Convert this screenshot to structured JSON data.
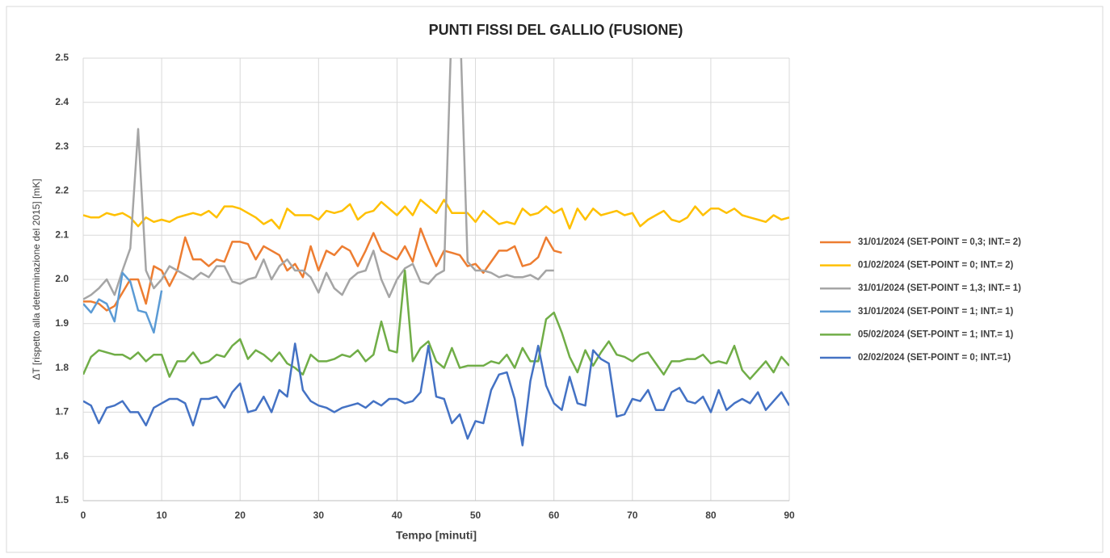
{
  "chart_data": {
    "type": "line",
    "title": "PUNTI FISSI DEL GALLIO (FUSIONE)",
    "x_label": "Tempo [minuti]",
    "y_label": "ΔT [rispetto alla determinazione del 2015] [mK]",
    "x": [
      0,
      1,
      2,
      3,
      4,
      5,
      6,
      7,
      8,
      9,
      10,
      11,
      12,
      13,
      14,
      15,
      16,
      17,
      18,
      19,
      20,
      21,
      22,
      23,
      24,
      25,
      26,
      27,
      28,
      29,
      30,
      31,
      32,
      33,
      34,
      35,
      36,
      37,
      38,
      39,
      40,
      41,
      42,
      43,
      44,
      45,
      46,
      47,
      48,
      49,
      50,
      51,
      52,
      53,
      54,
      55,
      56,
      57,
      58,
      59,
      60,
      61,
      62,
      63,
      64,
      65,
      66,
      67,
      68,
      69,
      70,
      71,
      72,
      73,
      74,
      75,
      76,
      77,
      78,
      79,
      80,
      81,
      82,
      83,
      84,
      85,
      86,
      87,
      88,
      89,
      90
    ],
    "xlim": [
      0,
      90
    ],
    "xticks": [
      0,
      10,
      20,
      30,
      40,
      50,
      60,
      70,
      80,
      90
    ],
    "ylim": [
      1.5,
      2.5
    ],
    "yticks": [
      1.5,
      1.6,
      1.7,
      1.8,
      1.9,
      {
        "value": 2,
        "label": "2.0"
      },
      2.1,
      2.2,
      2.3,
      2.4,
      2.5
    ],
    "grid": true,
    "legend": "right",
    "series": [
      {
        "name": "31/01/2024 (SET-POINT = 0,3; INT.= 2)",
        "color": "#ed7d31",
        "values": [
          1.95,
          1.95,
          1.945,
          1.93,
          1.94,
          1.97,
          2.0,
          2.0,
          1.945,
          2.03,
          2.02,
          1.985,
          2.02,
          2.095,
          2.045,
          2.045,
          2.03,
          2.045,
          2.04,
          2.085,
          2.085,
          2.08,
          2.045,
          2.075,
          2.065,
          2.055,
          2.02,
          2.035,
          2.005,
          2.075,
          2.02,
          2.065,
          2.055,
          2.075,
          2.065,
          2.03,
          2.065,
          2.105,
          2.065,
          2.055,
          2.045,
          2.075,
          2.04,
          2.115,
          2.07,
          2.03,
          2.065,
          2.06,
          2.055,
          2.03,
          2.035,
          2.015,
          2.04,
          2.065,
          2.065,
          2.075,
          2.03,
          2.035,
          2.05,
          2.095,
          2.065,
          2.06,
          null,
          null,
          null,
          null,
          null,
          null,
          null,
          null,
          null,
          null,
          null,
          null,
          null,
          null,
          null,
          null,
          null,
          null,
          null,
          null,
          null,
          null,
          null,
          null,
          null,
          null,
          null,
          null,
          null
        ]
      },
      {
        "name": "01/02/2024 (SET-POINT = 0; INT.= 2)",
        "color": "#ffc000",
        "values": [
          2.145,
          2.14,
          2.14,
          2.15,
          2.145,
          2.15,
          2.14,
          2.12,
          2.14,
          2.13,
          2.135,
          2.13,
          2.14,
          2.145,
          2.15,
          2.145,
          2.155,
          2.14,
          2.165,
          2.165,
          2.16,
          2.15,
          2.14,
          2.125,
          2.135,
          2.115,
          2.16,
          2.145,
          2.145,
          2.145,
          2.135,
          2.155,
          2.15,
          2.155,
          2.17,
          2.135,
          2.15,
          2.155,
          2.175,
          2.16,
          2.145,
          2.165,
          2.145,
          2.18,
          2.165,
          2.15,
          2.18,
          2.15,
          2.15,
          2.15,
          2.13,
          2.155,
          2.14,
          2.125,
          2.13,
          2.125,
          2.16,
          2.145,
          2.15,
          2.165,
          2.15,
          2.16,
          2.115,
          2.16,
          2.135,
          2.16,
          2.145,
          2.15,
          2.155,
          2.145,
          2.15,
          2.12,
          2.135,
          2.145,
          2.155,
          2.135,
          2.13,
          2.14,
          2.165,
          2.145,
          2.16,
          2.16,
          2.15,
          2.16,
          2.145,
          2.14,
          2.135,
          2.13,
          2.145,
          2.135,
          2.14
        ]
      },
      {
        "name": "31/01/2024 (SET-POINT = 1,3; INT.= 1)",
        "color": "#a5a5a5",
        "values": [
          1.955,
          1.965,
          1.98,
          2.0,
          1.965,
          2.02,
          2.07,
          2.34,
          2.02,
          1.98,
          2.0,
          2.03,
          2.02,
          2.01,
          2.0,
          2.015,
          2.005,
          2.03,
          2.03,
          1.995,
          1.99,
          2.0,
          2.005,
          2.045,
          2.0,
          2.03,
          2.045,
          2.02,
          2.02,
          2.005,
          1.97,
          2.015,
          1.98,
          1.965,
          2.0,
          2.015,
          2.02,
          2.065,
          2.0,
          1.96,
          2.0,
          2.025,
          2.035,
          1.995,
          1.99,
          2.01,
          2.02,
          2.6,
          2.6,
          2.04,
          2.02,
          2.02,
          2.015,
          2.005,
          2.01,
          2.005,
          2.005,
          2.01,
          2.0,
          2.02,
          2.02,
          null,
          null,
          null,
          null,
          null,
          null,
          null,
          null,
          null,
          null,
          null,
          null,
          null,
          null,
          null,
          null,
          null,
          null,
          null,
          null,
          null,
          null,
          null,
          null,
          null,
          null,
          null,
          null,
          null,
          null
        ]
      },
      {
        "name": "31/01/2024 (SET-POINT = 1; INT.= 1)",
        "color": "#5b9bd5",
        "values": [
          1.945,
          1.925,
          1.955,
          1.945,
          1.905,
          2.015,
          1.995,
          1.93,
          1.925,
          1.88,
          1.975,
          null,
          null,
          null,
          null,
          null,
          null,
          null,
          null,
          null,
          null,
          null,
          null,
          null,
          null,
          null,
          null,
          null,
          null,
          null,
          null,
          null,
          null,
          null,
          null,
          null,
          null,
          null,
          null,
          null,
          null,
          null,
          null,
          null,
          null,
          null,
          null,
          null,
          null,
          null,
          null,
          null,
          null,
          null,
          null,
          null,
          null,
          null,
          null,
          null,
          null,
          null,
          null,
          null,
          null,
          null,
          null,
          null,
          null,
          null,
          null,
          null,
          null,
          null,
          null,
          null,
          null,
          null,
          null,
          null,
          null,
          null,
          null,
          null,
          null,
          null,
          null,
          null,
          null,
          null,
          null
        ]
      },
      {
        "name": "05/02/2024 (SET-POINT = 1; INT.= 1)",
        "color": "#70ad47",
        "values": [
          1.785,
          1.825,
          1.84,
          1.835,
          1.83,
          1.83,
          1.82,
          1.835,
          1.815,
          1.83,
          1.83,
          1.78,
          1.815,
          1.815,
          1.835,
          1.81,
          1.815,
          1.83,
          1.825,
          1.85,
          1.865,
          1.82,
          1.84,
          1.83,
          1.815,
          1.835,
          1.81,
          1.8,
          1.785,
          1.83,
          1.815,
          1.815,
          1.82,
          1.83,
          1.825,
          1.84,
          1.815,
          1.83,
          1.905,
          1.84,
          1.835,
          2.02,
          1.815,
          1.845,
          1.86,
          1.815,
          1.8,
          1.845,
          1.8,
          1.805,
          1.805,
          1.805,
          1.815,
          1.81,
          1.83,
          1.8,
          1.845,
          1.815,
          1.815,
          1.91,
          1.925,
          1.88,
          1.825,
          1.79,
          1.84,
          1.805,
          1.835,
          1.86,
          1.83,
          1.825,
          1.815,
          1.83,
          1.835,
          1.81,
          1.785,
          1.815,
          1.815,
          1.82,
          1.82,
          1.83,
          1.81,
          1.815,
          1.81,
          1.85,
          1.795,
          1.775,
          1.795,
          1.815,
          1.79,
          1.825,
          1.805
        ]
      },
      {
        "name": "02/02/2024 (SET-POINT = 0; INT.=1)",
        "color": "#4472c4",
        "values": [
          1.725,
          1.715,
          1.675,
          1.71,
          1.715,
          1.725,
          1.7,
          1.7,
          1.67,
          1.71,
          1.72,
          1.73,
          1.73,
          1.72,
          1.67,
          1.73,
          1.73,
          1.735,
          1.71,
          1.745,
          1.765,
          1.7,
          1.705,
          1.735,
          1.7,
          1.75,
          1.735,
          1.855,
          1.75,
          1.725,
          1.715,
          1.71,
          1.7,
          1.71,
          1.715,
          1.72,
          1.71,
          1.725,
          1.715,
          1.73,
          1.73,
          1.72,
          1.725,
          1.745,
          1.85,
          1.735,
          1.73,
          1.675,
          1.695,
          1.64,
          1.68,
          1.675,
          1.75,
          1.785,
          1.79,
          1.73,
          1.625,
          1.77,
          1.85,
          1.76,
          1.72,
          1.705,
          1.78,
          1.72,
          1.715,
          1.84,
          1.82,
          1.81,
          1.69,
          1.695,
          1.73,
          1.725,
          1.75,
          1.705,
          1.705,
          1.745,
          1.755,
          1.725,
          1.72,
          1.735,
          1.7,
          1.75,
          1.705,
          1.72,
          1.73,
          1.72,
          1.745,
          1.705,
          1.725,
          1.745,
          1.715
        ]
      }
    ]
  }
}
